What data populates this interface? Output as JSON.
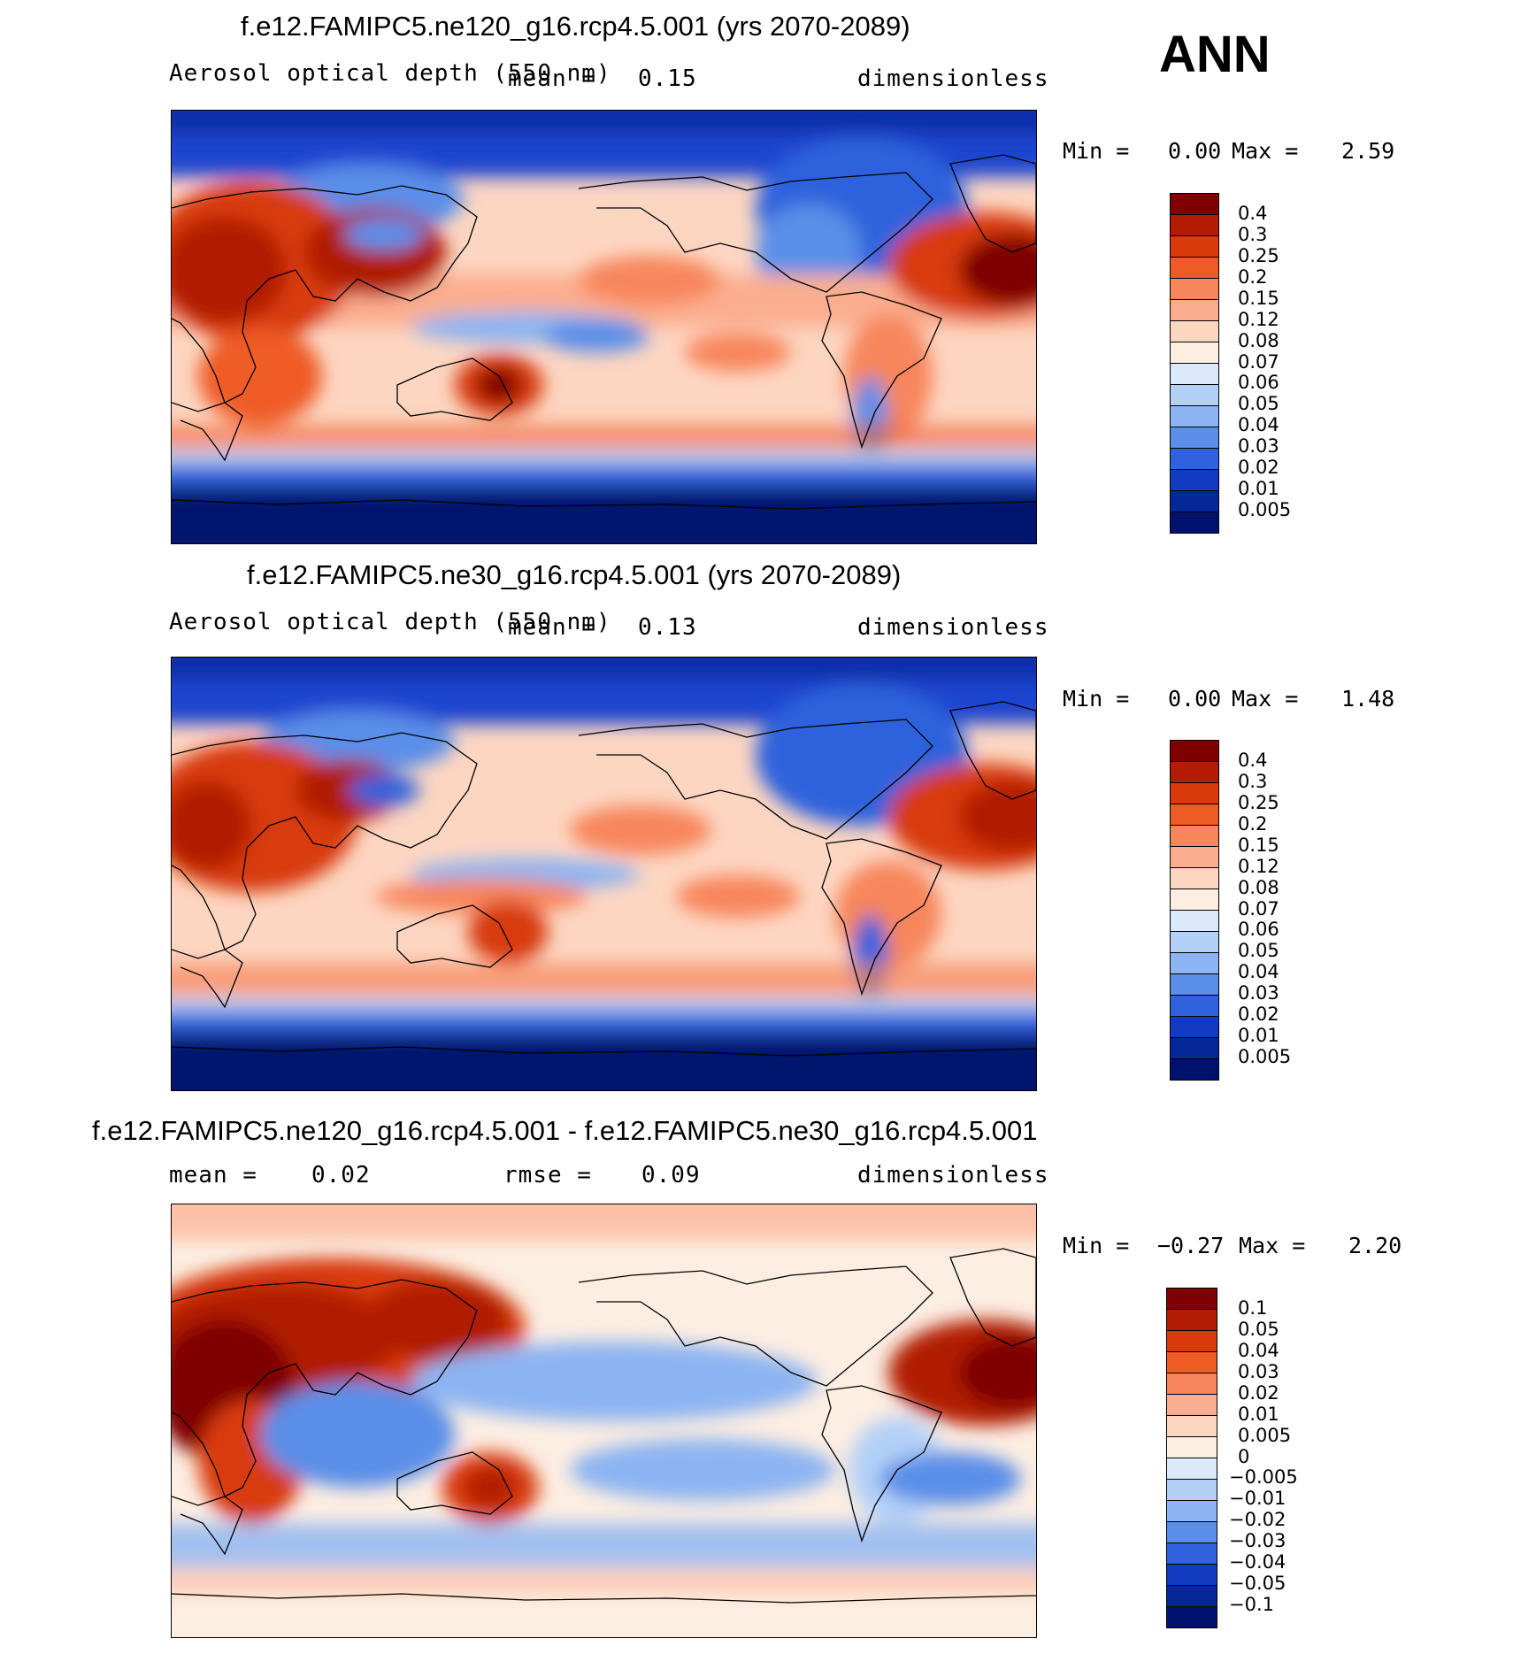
{
  "season": "ANN",
  "panels": [
    {
      "title": "f.e12.FAMIPC5.ne120_g16.rcp4.5.001 (yrs 2070-2089)",
      "variable": "Aerosol optical depth (550 nm)",
      "mean_label": "mean =",
      "mean": "0.15",
      "units": "dimensionless",
      "min_label": "Min =",
      "min": "0.00",
      "max_label": "Max =",
      "max": "2.59",
      "colorbar": {
        "labels": [
          "0.4",
          "0.3",
          "0.25",
          "0.2",
          "0.15",
          "0.12",
          "0.08",
          "0.07",
          "0.06",
          "0.05",
          "0.04",
          "0.03",
          "0.02",
          "0.01",
          "0.005"
        ],
        "colors": [
          "#7f0000",
          "#b01d02",
          "#d83b09",
          "#ef5b25",
          "#f7865b",
          "#fbae8f",
          "#fdd6c2",
          "#fdeee2",
          "#dbe9fb",
          "#b3d0f7",
          "#8cb4f2",
          "#5a8ee8",
          "#2f62dc",
          "#123bc2",
          "#062797",
          "#00126e"
        ]
      },
      "map_description": "Annual mean aerosol optical depth, high resolution ne120"
    },
    {
      "title": "f.e12.FAMIPC5.ne30_g16.rcp4.5.001 (yrs 2070-2089)",
      "variable": "Aerosol optical depth (550 nm)",
      "mean_label": "mean =",
      "mean": "0.13",
      "units": "dimensionless",
      "min_label": "Min =",
      "min": "0.00",
      "max_label": "Max =",
      "max": "1.48",
      "colorbar": {
        "labels": [
          "0.4",
          "0.3",
          "0.25",
          "0.2",
          "0.15",
          "0.12",
          "0.08",
          "0.07",
          "0.06",
          "0.05",
          "0.04",
          "0.03",
          "0.02",
          "0.01",
          "0.005"
        ],
        "colors": [
          "#7f0000",
          "#b01d02",
          "#d83b09",
          "#ef5b25",
          "#f7865b",
          "#fbae8f",
          "#fdd6c2",
          "#fdeee2",
          "#dbe9fb",
          "#b3d0f7",
          "#8cb4f2",
          "#5a8ee8",
          "#2f62dc",
          "#123bc2",
          "#062797",
          "#00126e"
        ]
      },
      "map_description": "Annual mean aerosol optical depth, low resolution ne30"
    },
    {
      "title": "f.e12.FAMIPC5.ne120_g16.rcp4.5.001 - f.e12.FAMIPC5.ne30_g16.rcp4.5.001",
      "mean_label": "mean =",
      "mean": "0.02",
      "rmse_label": "rmse =",
      "rmse": "0.09",
      "units": "dimensionless",
      "min_label": "Min =",
      "min": "−0.27",
      "max_label": "Max =",
      "max": "2.20",
      "colorbar": {
        "labels": [
          "0.1",
          "0.05",
          "0.04",
          "0.03",
          "0.02",
          "0.01",
          "0.005",
          "0",
          "−0.005",
          "−0.01",
          "−0.02",
          "−0.03",
          "−0.04",
          "−0.05",
          "−0.1"
        ],
        "colors": [
          "#7f0000",
          "#b01d02",
          "#d83b09",
          "#ef5b25",
          "#f7865b",
          "#fbae8f",
          "#fdd6c2",
          "#fdeee2",
          "#dbe9fb",
          "#b3d0f7",
          "#8cb4f2",
          "#5a8ee8",
          "#2f62dc",
          "#123bc2",
          "#062797",
          "#00126e"
        ]
      },
      "map_description": "Difference map ne120 minus ne30"
    }
  ]
}
